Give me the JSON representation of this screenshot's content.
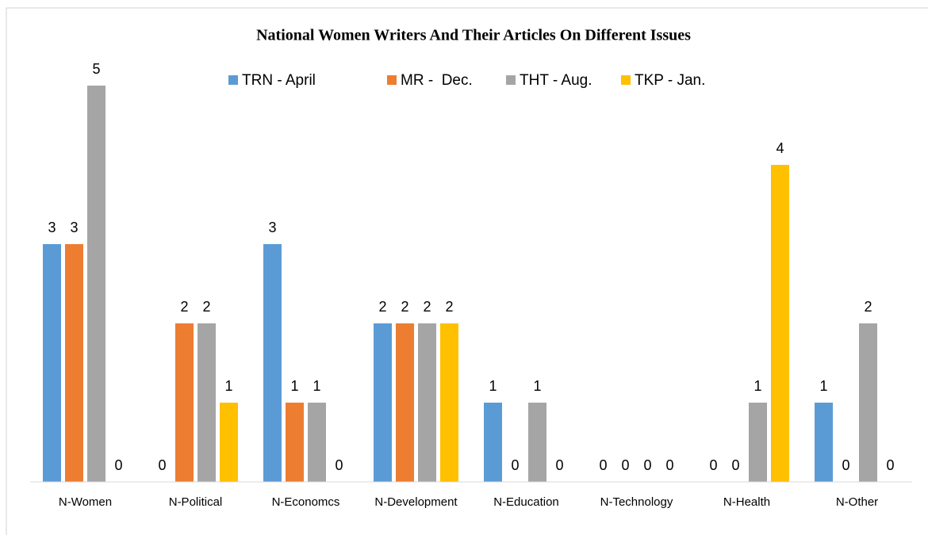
{
  "chart_data": {
    "type": "bar",
    "title": "National Women Writers And Their Articles On Different Issues",
    "categories": [
      "N-Women",
      "N-Political",
      "N-Economcs",
      "N-Development",
      "N-Education",
      "N-Technology",
      "N-Health",
      "N-Other"
    ],
    "series": [
      {
        "name": "TRN - April",
        "color": "#5b9bd5",
        "values": [
          3,
          0,
          3,
          2,
          1,
          0,
          0,
          1
        ]
      },
      {
        "name": "MR -  Dec.",
        "color": "#ed7d31",
        "values": [
          3,
          2,
          1,
          2,
          0,
          0,
          0,
          0
        ]
      },
      {
        "name": "THT - Aug.",
        "color": "#a5a5a5",
        "values": [
          5,
          2,
          1,
          2,
          1,
          0,
          1,
          2
        ]
      },
      {
        "name": "TKP - Jan.",
        "color": "#ffc000",
        "values": [
          0,
          1,
          0,
          2,
          0,
          0,
          4,
          0
        ]
      }
    ],
    "ylim": [
      0,
      5
    ],
    "legend": "top"
  }
}
